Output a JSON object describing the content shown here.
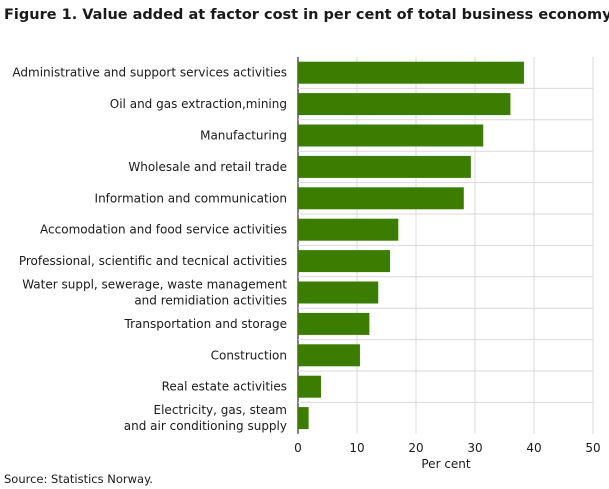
{
  "title": "Figure 1. Value added at factor cost in per cent of total business economy",
  "source": "Source: Statistics Norway.",
  "chart_data": {
    "type": "bar",
    "orientation": "horizontal",
    "categories": [
      "Administrative and support services activities",
      "Oil and gas extraction,mining",
      "Manufacturing",
      "Wholesale and retail trade",
      "Information and communication",
      "Accomodation and food service activities",
      "Professional, scientific and tecnical activities",
      "Water suppl, sewerage,  waste management\nand remidiation  activities",
      "Transportation and storage",
      "Construction",
      "Real estate activities",
      "Electricity, gas, steam\nand air conditioning supply"
    ],
    "values": [
      38.3,
      36.0,
      31.4,
      29.3,
      28.1,
      17.0,
      15.6,
      13.6,
      12.1,
      10.5,
      3.9,
      1.8
    ],
    "xlabel": "Per cent",
    "xlim": [
      0,
      50
    ],
    "xticks": [
      0,
      10,
      20,
      30,
      40,
      50
    ],
    "bar_color": "#3a7d00",
    "grid": true
  }
}
